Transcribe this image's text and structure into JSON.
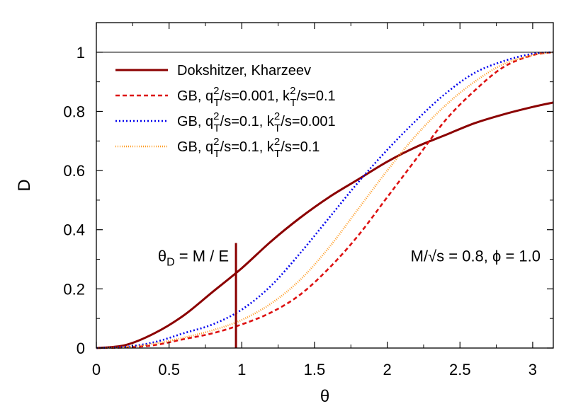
{
  "chart_data": {
    "type": "line",
    "title": "",
    "xlabel": "θ",
    "ylabel": "D",
    "xlim": [
      0,
      3.14159
    ],
    "ylim": [
      0,
      1.1
    ],
    "grid": false,
    "legend_position": "top-left",
    "x_ticks": [
      {
        "value": 0,
        "label": "0"
      },
      {
        "value": 0.5,
        "label": "0.5"
      },
      {
        "value": 1,
        "label": "1"
      },
      {
        "value": 1.5,
        "label": "1.5"
      },
      {
        "value": 2,
        "label": "2"
      },
      {
        "value": 2.5,
        "label": "2.5"
      },
      {
        "value": 3,
        "label": "3"
      }
    ],
    "y_ticks": [
      {
        "value": 0,
        "label": "0"
      },
      {
        "value": 0.2,
        "label": "0.2"
      },
      {
        "value": 0.4,
        "label": "0.4"
      },
      {
        "value": 0.6,
        "label": "0.6"
      },
      {
        "value": 0.8,
        "label": "0.8"
      },
      {
        "value": 1,
        "label": "1"
      }
    ],
    "reference_line": {
      "y": 1,
      "color": "#000000"
    },
    "vertical_marker": {
      "x": 0.96,
      "y_top": 0.355,
      "label": "θ_D = M / E",
      "color": "#8b0000"
    },
    "annotation": "M/√s = 0.8, ϕ = 1.0",
    "x": [
      0,
      0.2,
      0.4,
      0.6,
      0.8,
      1.0,
      1.2,
      1.4,
      1.6,
      1.8,
      2.0,
      2.2,
      2.4,
      2.6,
      2.8,
      3.0,
      3.14159
    ],
    "series": [
      {
        "name": "Dokshitzer, Kharzeev",
        "label_main": "Dokshitzer, Kharzeev",
        "color": "#8b0000",
        "dash": "solid",
        "values": [
          0,
          0.01,
          0.05,
          0.11,
          0.19,
          0.27,
          0.36,
          0.44,
          0.51,
          0.57,
          0.63,
          0.68,
          0.72,
          0.76,
          0.79,
          0.815,
          0.83
        ]
      },
      {
        "name": "GB, q_T^2/s=0.001, k_T^2/s=0.1",
        "label_main": "GB, q",
        "label_sub1": "T",
        "label_sup1": "2",
        "label_mid": "/s=0.001, k",
        "label_sub2": "T",
        "label_sup2": "2",
        "label_end": "/s=0.1",
        "color": "#dd1111",
        "dash": "6,4",
        "values": [
          0,
          0.002,
          0.01,
          0.03,
          0.05,
          0.08,
          0.12,
          0.18,
          0.27,
          0.38,
          0.51,
          0.64,
          0.77,
          0.87,
          0.95,
          0.99,
          1.0
        ]
      },
      {
        "name": "GB, q_T^2/s=0.1, k_T^2/s=0.001",
        "label_main": "GB, q",
        "label_sub1": "T",
        "label_sup1": "2",
        "label_mid": "/s=0.1, k",
        "label_sub2": "T",
        "label_sup2": "2",
        "label_end": "/s=0.001",
        "color": "#0000ee",
        "dash": "2,3",
        "values": [
          0,
          0.004,
          0.02,
          0.05,
          0.08,
          0.13,
          0.21,
          0.32,
          0.44,
          0.56,
          0.67,
          0.77,
          0.86,
          0.93,
          0.97,
          0.995,
          1.0
        ]
      },
      {
        "name": "GB, q_T^2/s=0.1, k_T^2/s=0.1",
        "label_main": "GB, q",
        "label_sub1": "T",
        "label_sup1": "2",
        "label_mid": "/s=0.1, k",
        "label_sub2": "T",
        "label_sup2": "2",
        "label_end": "/s=0.1",
        "color": "#ff9a1f",
        "dash": "1,2",
        "values": [
          0,
          0.003,
          0.015,
          0.035,
          0.06,
          0.095,
          0.15,
          0.23,
          0.34,
          0.47,
          0.6,
          0.72,
          0.82,
          0.9,
          0.96,
          0.99,
          1.0
        ]
      }
    ]
  }
}
